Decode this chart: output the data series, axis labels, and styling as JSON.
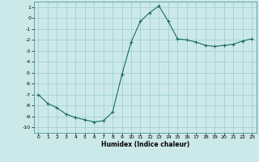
{
  "x": [
    0,
    1,
    2,
    3,
    4,
    5,
    6,
    7,
    8,
    9,
    10,
    11,
    12,
    13,
    14,
    15,
    16,
    17,
    18,
    19,
    20,
    21,
    22,
    23
  ],
  "y": [
    -7.0,
    -7.8,
    -8.2,
    -8.8,
    -9.1,
    -9.3,
    -9.5,
    -9.4,
    -8.6,
    -5.2,
    -2.2,
    -0.3,
    0.5,
    1.1,
    -0.3,
    -1.9,
    -2.0,
    -2.2,
    -2.5,
    -2.6,
    -2.5,
    -2.4,
    -2.1,
    -1.9
  ],
  "xlim": [
    -0.5,
    23.5
  ],
  "ylim": [
    -10.5,
    1.5
  ],
  "yticks": [
    1,
    0,
    -1,
    -2,
    -3,
    -4,
    -5,
    -6,
    -7,
    -8,
    -9,
    -10
  ],
  "xticks": [
    0,
    1,
    2,
    3,
    4,
    5,
    6,
    7,
    8,
    9,
    10,
    11,
    12,
    13,
    14,
    15,
    16,
    17,
    18,
    19,
    20,
    21,
    22,
    23
  ],
  "xlabel": "Humidex (Indice chaleur)",
  "line_color": "#1a6b5e",
  "marker": "+",
  "bg_color": "#cce9e9",
  "grid_color": "#99cccc",
  "spine_color": "#4d9999"
}
